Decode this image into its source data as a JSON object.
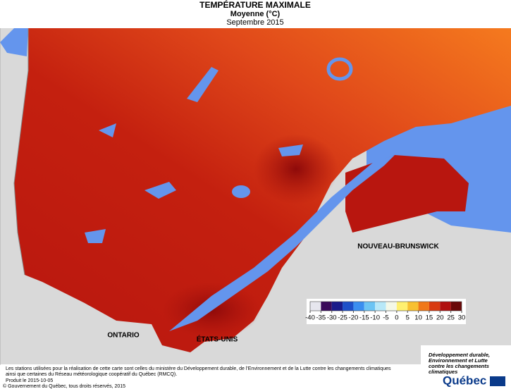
{
  "header": {
    "title": "TEMPÉRATURE MAXIMALE",
    "subtitle": "Moyenne (°C)",
    "period": "Septembre 2015"
  },
  "map": {
    "labels": [
      "ONTARIO",
      "ÉTATS-UNIS",
      "NOUVEAU-BRUNSWICK"
    ]
  },
  "legend": {
    "ticks": [
      -40,
      -35,
      -30,
      -25,
      -20,
      -15,
      -10,
      -5,
      0,
      5,
      10,
      15,
      20,
      25,
      30
    ],
    "colors": [
      "#e6e6ee",
      "#3a0a5a",
      "#1a1a8a",
      "#1d4fc8",
      "#3a8ef0",
      "#6cc4f4",
      "#b8e8f8",
      "#f4f8e8",
      "#fff070",
      "#f8c030",
      "#f07818",
      "#d83a10",
      "#b01010",
      "#6a0808"
    ]
  },
  "footer": {
    "note": [
      "Les stations utilisées pour la réalisation de cette carte sont celles du ministère du Développement durable, de l'Environnement et de la Lutte contre les changements climatiques",
      "ainsi que certaines du Réseau météorologique coopératif du Québec (RMCQ)."
    ],
    "produced": "Produit le 2015-10-05",
    "copyright": "© Gouvernement du Québec, tous droits réservés, 2015"
  },
  "logo": {
    "text": [
      "Développement durable,",
      "Environnement et Lutte",
      "contre les changements",
      "climatiques"
    ],
    "brand": "Québec"
  }
}
